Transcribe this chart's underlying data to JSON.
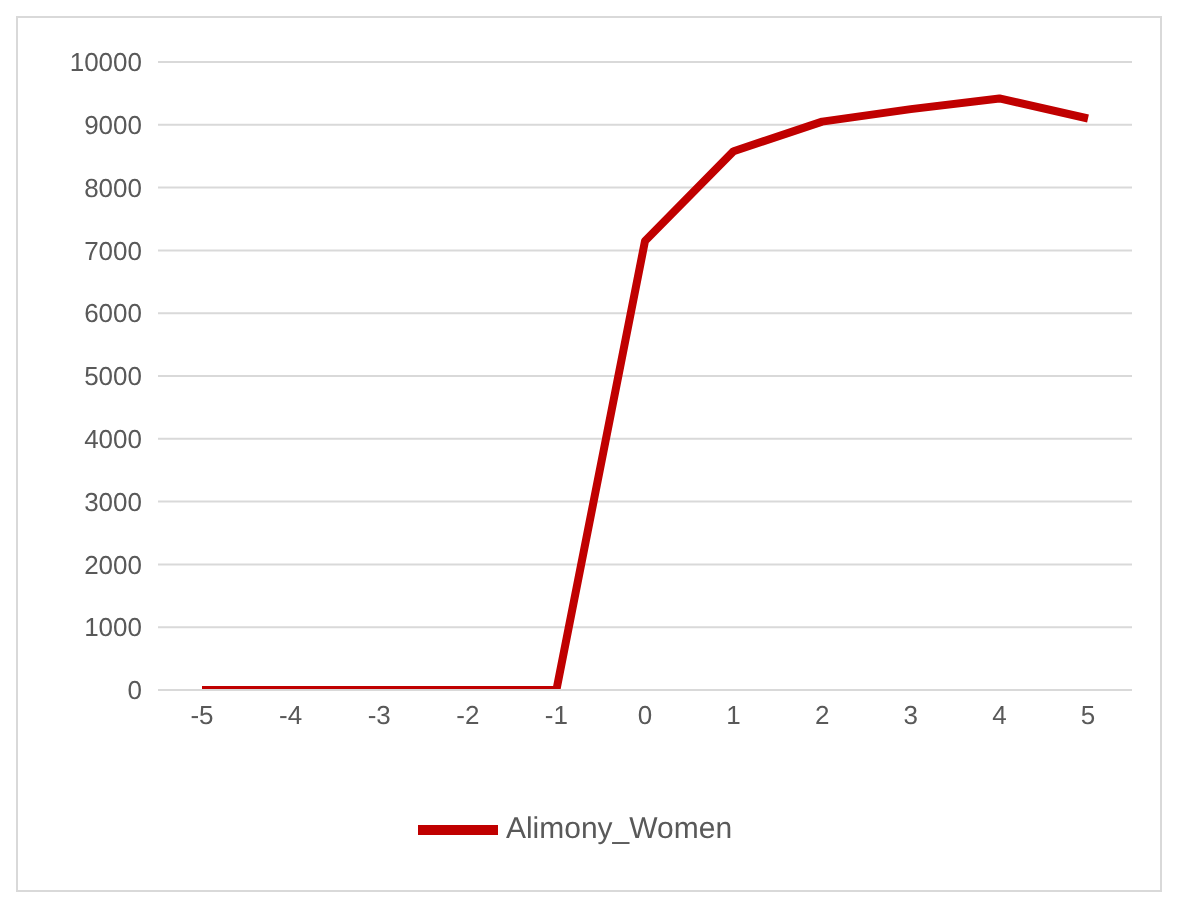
{
  "chart_data": {
    "type": "line",
    "categories": [
      "-5",
      "-4",
      "-3",
      "-2",
      "-1",
      "0",
      "1",
      "2",
      "3",
      "4",
      "5"
    ],
    "series": [
      {
        "name": "Alimony_Women",
        "color": "#c00000",
        "values": [
          0,
          0,
          0,
          0,
          0,
          7150,
          8580,
          9050,
          9250,
          9420,
          9100
        ]
      }
    ],
    "ylim": [
      0,
      10000
    ],
    "yticks": [
      0,
      1000,
      2000,
      3000,
      4000,
      5000,
      6000,
      7000,
      8000,
      9000,
      10000
    ],
    "grid": "y",
    "legend": "bottom",
    "marker": "none",
    "line_style": "solid"
  }
}
